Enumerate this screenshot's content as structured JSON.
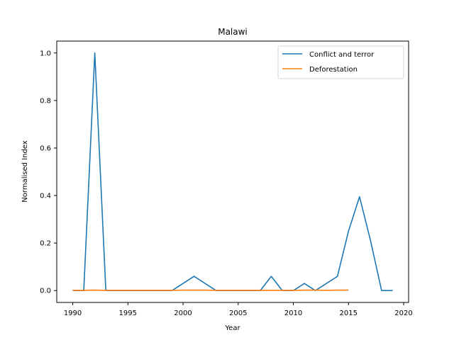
{
  "chart_data": {
    "type": "line",
    "title": "Malawi",
    "xlabel": "Year",
    "ylabel": "Normalised Index",
    "xlim": [
      1988.55,
      2020.45
    ],
    "ylim": [
      -0.05,
      1.05
    ],
    "xticks": [
      1990,
      1995,
      2000,
      2005,
      2010,
      2015,
      2020
    ],
    "yticks": [
      0.0,
      0.2,
      0.4,
      0.6,
      0.8,
      1.0
    ],
    "xtick_labels": [
      "1990",
      "1995",
      "2000",
      "2005",
      "2010",
      "2015",
      "2020"
    ],
    "ytick_labels": [
      "0.0",
      "0.2",
      "0.4",
      "0.6",
      "0.8",
      "1.0"
    ],
    "grid": false,
    "legend_position": "top-right",
    "series": [
      {
        "name": "Conflict and terror",
        "color": "#1f77b4",
        "x": [
          1990,
          1991,
          1992,
          1993,
          1994,
          1995,
          1996,
          1997,
          1998,
          1999,
          2000,
          2001,
          2002,
          2003,
          2004,
          2005,
          2006,
          2007,
          2008,
          2009,
          2010,
          2011,
          2012,
          2013,
          2014,
          2015,
          2016,
          2017,
          2018,
          2019
        ],
        "y": [
          0,
          0,
          1.0,
          0,
          0,
          0,
          0,
          0,
          0,
          0,
          0.03,
          0.06,
          0.03,
          0,
          0,
          0,
          0,
          0,
          0.06,
          0,
          0,
          0.03,
          0,
          0.03,
          0.06,
          0.25,
          0.395,
          0.21,
          0,
          0
        ]
      },
      {
        "name": "Deforestation",
        "color": "#ff7f0e",
        "x": [
          1990,
          1991,
          1992,
          1993,
          1994,
          1995,
          1996,
          1997,
          1998,
          1999,
          2000,
          2001,
          2002,
          2003,
          2004,
          2005,
          2006,
          2007,
          2008,
          2009,
          2010,
          2011,
          2012,
          2013,
          2014,
          2015
        ],
        "y": [
          0.001,
          0.001,
          0.002,
          0.001,
          0.001,
          0.001,
          0.001,
          0.001,
          0.001,
          0.001,
          0.002,
          0.002,
          0.002,
          0.001,
          0.001,
          0.001,
          0.001,
          0.001,
          0.001,
          0.001,
          0.001,
          0.002,
          0.002,
          0.001,
          0.002,
          0.002
        ]
      }
    ]
  }
}
